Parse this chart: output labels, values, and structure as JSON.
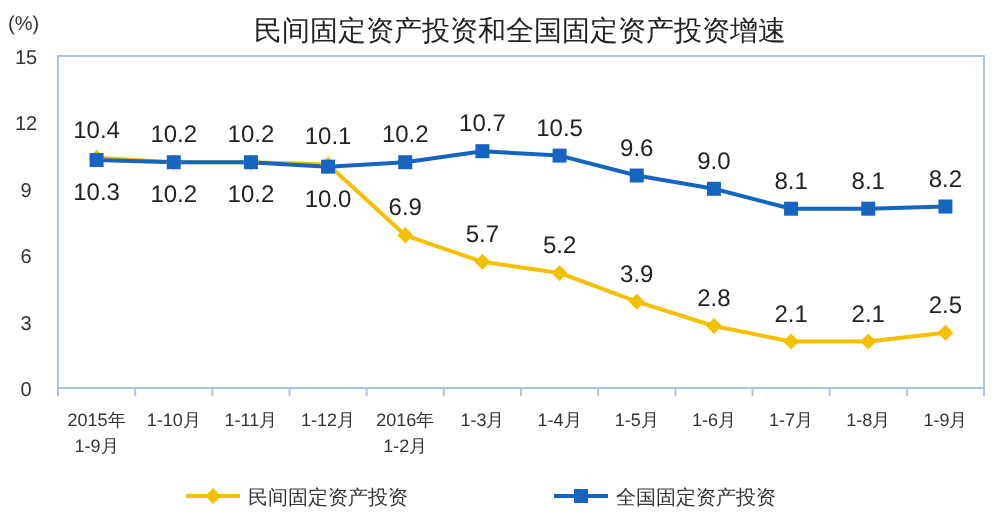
{
  "chart_data": {
    "type": "line",
    "title": "民间固定资产投资和全国固定资产投资增速",
    "ylabel": "(%)",
    "categories": [
      "2015年\n1-9月",
      "1-10月",
      "1-11月",
      "1-12月",
      "2016年\n1-2月",
      "1-3月",
      "1-4月",
      "1-5月",
      "1-6月",
      "1-7月",
      "1-8月",
      "1-9月"
    ],
    "series": [
      {
        "name": "民间固定资产投资",
        "color": "#f5c000",
        "marker": "diamond",
        "values": [
          10.4,
          10.2,
          10.2,
          10.1,
          6.9,
          5.7,
          5.2,
          3.9,
          2.8,
          2.1,
          2.1,
          2.5
        ],
        "value_labels": [
          "10.4",
          "10.2",
          "10.2",
          "10.1",
          "6.9",
          "5.7",
          "5.2",
          "3.9",
          "2.8",
          "2.1",
          "2.1",
          "2.5"
        ]
      },
      {
        "name": "全国固定资产投资",
        "color": "#1565c0",
        "marker": "square",
        "values": [
          10.3,
          10.2,
          10.2,
          10.0,
          10.2,
          10.7,
          10.5,
          9.6,
          9.0,
          8.1,
          8.1,
          8.2
        ],
        "value_labels": [
          "10.3",
          "10.2",
          "10.2",
          "10.0",
          "10.2",
          "10.7",
          "10.5",
          "9.6",
          "9.0",
          "8.1",
          "8.1",
          "8.2"
        ]
      }
    ],
    "ylim": [
      0,
      15
    ],
    "yticks": [
      0,
      3,
      6,
      9,
      12,
      15
    ],
    "grid": false,
    "legend": "bottom"
  }
}
